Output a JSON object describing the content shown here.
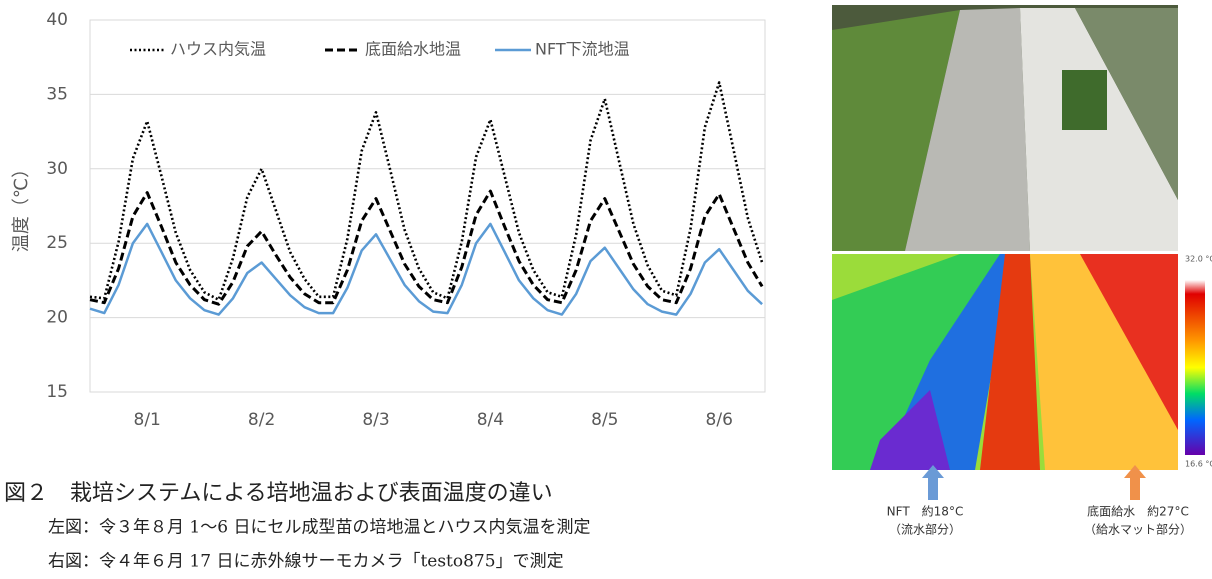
{
  "chart_data": {
    "type": "line",
    "ylabel": "温度（℃）",
    "x": [
      0.5,
      0.625,
      0.75,
      0.875,
      1,
      1.125,
      1.25,
      1.375,
      1.5,
      1.625,
      1.75,
      1.875,
      2,
      2.125,
      2.25,
      2.375,
      2.5,
      2.625,
      2.75,
      2.875,
      3,
      3.125,
      3.25,
      3.375,
      3.5,
      3.625,
      3.75,
      3.875,
      4,
      4.125,
      4.25,
      4.375,
      4.5,
      4.625,
      4.75,
      4.875,
      5,
      5.125,
      5.25,
      5.375,
      5.5,
      5.625,
      5.75,
      5.875,
      6,
      6.125,
      6.25,
      6.375
    ],
    "xlim": [
      0.5,
      6.4
    ],
    "xticks": [
      {
        "value": 1,
        "label": "8/1"
      },
      {
        "value": 2,
        "label": "8/2"
      },
      {
        "value": 3,
        "label": "8/3"
      },
      {
        "value": 4,
        "label": "8/4"
      },
      {
        "value": 5,
        "label": "8/5"
      },
      {
        "value": 6,
        "label": "8/6"
      }
    ],
    "ylim": [
      15,
      40
    ],
    "yticks": [
      15,
      20,
      25,
      30,
      35,
      40
    ],
    "grid": true,
    "legend": "top",
    "series": [
      {
        "name": "ハウス内気温",
        "color": "#000000",
        "style": "dotted",
        "values": [
          21.4,
          21.3,
          25.1,
          30.7,
          33.2,
          29.5,
          25.7,
          23.2,
          21.7,
          21.2,
          24.0,
          28.1,
          30.0,
          27.2,
          24.4,
          22.6,
          21.4,
          21.4,
          25.3,
          31.2,
          33.8,
          29.9,
          25.9,
          23.3,
          21.7,
          21.3,
          25.1,
          30.8,
          33.3,
          29.5,
          25.7,
          23.2,
          21.7,
          21.4,
          25.6,
          31.9,
          34.7,
          30.5,
          26.3,
          23.5,
          21.8,
          21.5,
          26.0,
          32.8,
          35.8,
          31.3,
          26.7,
          23.7
        ]
      },
      {
        "name": "底面給水地温",
        "color": "#000000",
        "style": "dashed",
        "values": [
          21.2,
          21.0,
          23.3,
          26.8,
          28.4,
          26.1,
          23.7,
          22.2,
          21.2,
          20.9,
          22.4,
          24.8,
          25.8,
          24.2,
          22.7,
          21.6,
          21.0,
          21.0,
          23.2,
          26.5,
          28.0,
          25.8,
          23.6,
          22.1,
          21.2,
          21.0,
          23.4,
          26.9,
          28.5,
          26.1,
          23.8,
          22.2,
          21.2,
          21.0,
          23.2,
          26.5,
          28.0,
          25.8,
          23.6,
          22.1,
          21.2,
          21.0,
          23.3,
          26.8,
          28.3,
          26.0,
          23.7,
          22.1
        ]
      },
      {
        "name": "NFT下流地温",
        "color": "#5b9bd5",
        "style": "solid",
        "values": [
          20.6,
          20.3,
          22.2,
          25.0,
          26.3,
          24.4,
          22.5,
          21.3,
          20.5,
          20.2,
          21.3,
          23.0,
          23.7,
          22.6,
          21.5,
          20.7,
          20.3,
          20.3,
          22.0,
          24.5,
          25.6,
          23.9,
          22.2,
          21.1,
          20.4,
          20.3,
          22.2,
          25.0,
          26.3,
          24.4,
          22.5,
          21.3,
          20.5,
          20.2,
          21.6,
          23.8,
          24.7,
          23.3,
          21.9,
          20.9,
          20.4,
          20.2,
          21.6,
          23.7,
          24.6,
          23.2,
          21.8,
          20.9
        ]
      }
    ]
  },
  "thermal": {
    "max_label": "32.0 °C",
    "min_label": "16.6 °C",
    "left_label": [
      "NFT　約18°C",
      "（流水部分）"
    ],
    "right_label": [
      "底面給水　約27°C",
      "（給水マット部分）"
    ]
  },
  "caption": {
    "title": "図２　栽培システムによる培地温および表面温度の違い",
    "lines": [
      "左図：令３年８月 1～6 日にセル成型苗の培地温とハウス内気温を測定",
      "右図：令４年６月 17 日に赤外線サーモカメラ「testo875」で測定"
    ]
  }
}
